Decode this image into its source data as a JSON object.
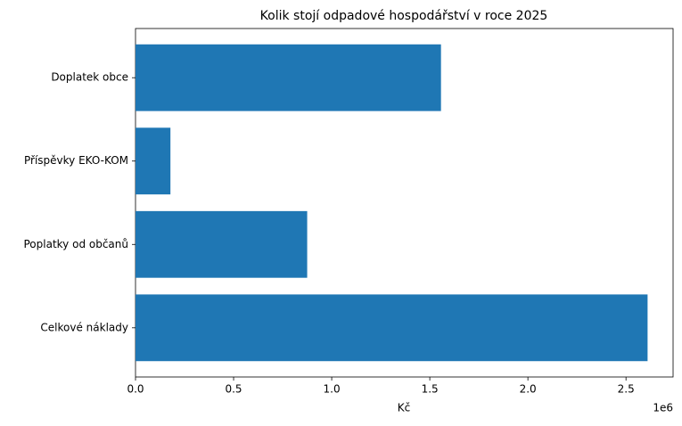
{
  "chart_data": {
    "type": "barh",
    "title": "Kolik stojí odpadové hospodářství v roce 2025",
    "categories": [
      "Celkové náklady",
      "Poplatky od občanů",
      "Příspěvky EKO-KOM",
      "Doplatek obce"
    ],
    "values": [
      2610000,
      875000,
      178000,
      1557000
    ],
    "color": "#1f77b4",
    "xlabel": "Kč",
    "x_offset_label": "1e6",
    "xlim": [
      0,
      2740000
    ],
    "xticks": [
      {
        "value": 0,
        "label": "0.0"
      },
      {
        "value": 500000,
        "label": "0.5"
      },
      {
        "value": 1000000,
        "label": "1.0"
      },
      {
        "value": 1500000,
        "label": "1.5"
      },
      {
        "value": 2000000,
        "label": "2.0"
      },
      {
        "value": 2500000,
        "label": "2.5"
      }
    ],
    "grid": false
  }
}
